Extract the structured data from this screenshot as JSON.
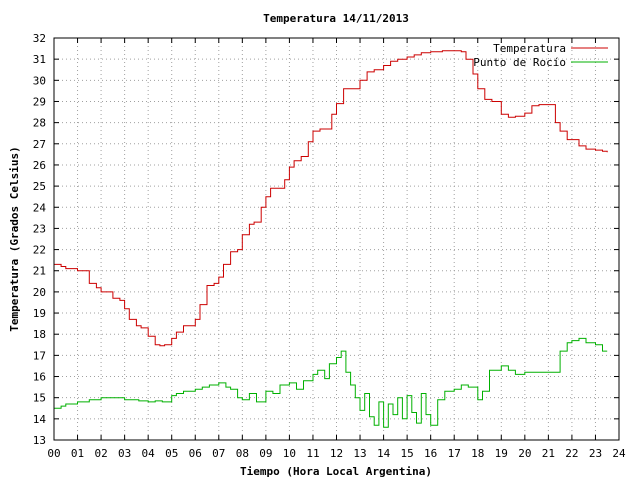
{
  "chart_data": {
    "type": "line",
    "title": "Temperatura 14/11/2013",
    "xlabel": "Tiempo (Hora Local Argentina)",
    "ylabel": "Temperatura (Grados Celsius)",
    "xlim": [
      0,
      24
    ],
    "ylim": [
      13,
      32
    ],
    "x_tick_labels": [
      "00",
      "01",
      "02",
      "03",
      "04",
      "05",
      "06",
      "07",
      "08",
      "09",
      "10",
      "11",
      "12",
      "13",
      "14",
      "15",
      "16",
      "17",
      "18",
      "19",
      "20",
      "21",
      "22",
      "23",
      "24"
    ],
    "y_ticks": [
      13,
      14,
      15,
      16,
      17,
      18,
      19,
      20,
      21,
      22,
      23,
      24,
      25,
      26,
      27,
      28,
      29,
      30,
      31,
      32
    ],
    "grid": true,
    "legend_position": "top-right",
    "series": [
      {
        "name": "Temperatura",
        "color": "#cc0000",
        "x": [
          0,
          0.3,
          0.5,
          1.0,
          1.5,
          1.8,
          2.0,
          2.5,
          2.8,
          3.0,
          3.2,
          3.5,
          3.7,
          4.0,
          4.3,
          4.5,
          4.7,
          5.0,
          5.2,
          5.5,
          5.7,
          6.0,
          6.2,
          6.5,
          6.8,
          7.0,
          7.2,
          7.5,
          7.8,
          8.0,
          8.3,
          8.5,
          8.8,
          9.0,
          9.2,
          9.5,
          9.8,
          10.0,
          10.2,
          10.5,
          10.8,
          11.0,
          11.3,
          11.5,
          11.8,
          12.0,
          12.3,
          12.7,
          13.0,
          13.3,
          13.6,
          14.0,
          14.3,
          14.6,
          15.0,
          15.3,
          15.6,
          16.0,
          16.5,
          17.0,
          17.3,
          17.5,
          17.8,
          18.0,
          18.3,
          18.6,
          19.0,
          19.3,
          19.6,
          20.0,
          20.3,
          20.6,
          21.0,
          21.3,
          21.5,
          21.8,
          22.0,
          22.3,
          22.6,
          23.0,
          23.3,
          23.5
        ],
        "values": [
          21.3,
          21.2,
          21.1,
          21.0,
          20.4,
          20.2,
          20.0,
          19.7,
          19.6,
          19.2,
          18.7,
          18.4,
          18.3,
          17.9,
          17.5,
          17.45,
          17.5,
          17.8,
          18.1,
          18.4,
          18.4,
          18.7,
          19.4,
          20.3,
          20.4,
          20.7,
          21.3,
          21.9,
          22.0,
          22.7,
          23.2,
          23.3,
          24.0,
          24.5,
          24.9,
          24.9,
          25.3,
          25.9,
          26.2,
          26.4,
          27.1,
          27.6,
          27.7,
          27.7,
          28.4,
          28.9,
          29.6,
          29.6,
          30.0,
          30.4,
          30.5,
          30.7,
          30.9,
          31.0,
          31.1,
          31.2,
          31.3,
          31.35,
          31.4,
          31.4,
          31.35,
          31.0,
          30.3,
          29.6,
          29.1,
          29.0,
          28.4,
          28.25,
          28.3,
          28.45,
          28.8,
          28.85,
          28.85,
          28.0,
          27.6,
          27.2,
          27.2,
          26.9,
          26.75,
          26.7,
          26.65,
          26.6
        ]
      },
      {
        "name": "Punto de Rocío",
        "color": "#00b000",
        "x": [
          0,
          0.3,
          0.5,
          0.8,
          1.0,
          1.5,
          2.0,
          2.5,
          3.0,
          3.3,
          3.6,
          4.0,
          4.3,
          4.6,
          5.0,
          5.2,
          5.5,
          5.8,
          6.0,
          6.3,
          6.6,
          7.0,
          7.3,
          7.5,
          7.8,
          8.0,
          8.3,
          8.6,
          9.0,
          9.3,
          9.6,
          10.0,
          10.3,
          10.6,
          11.0,
          11.2,
          11.5,
          11.7,
          12.0,
          12.2,
          12.4,
          12.6,
          12.8,
          13.0,
          13.2,
          13.4,
          13.6,
          13.8,
          14.0,
          14.2,
          14.4,
          14.6,
          14.8,
          15.0,
          15.2,
          15.4,
          15.6,
          15.8,
          16.0,
          16.3,
          16.6,
          17.0,
          17.3,
          17.6,
          18.0,
          18.2,
          18.5,
          18.8,
          19.0,
          19.3,
          19.6,
          20.0,
          20.4,
          20.8,
          21.2,
          21.5,
          21.8,
          22.0,
          22.3,
          22.6,
          23.0,
          23.3,
          23.5
        ],
        "values": [
          14.5,
          14.6,
          14.7,
          14.7,
          14.8,
          14.9,
          15.0,
          15.0,
          14.9,
          14.9,
          14.85,
          14.8,
          14.85,
          14.8,
          15.1,
          15.2,
          15.3,
          15.3,
          15.4,
          15.5,
          15.6,
          15.7,
          15.5,
          15.4,
          15.0,
          14.9,
          15.2,
          14.8,
          15.3,
          15.2,
          15.6,
          15.7,
          15.4,
          15.8,
          16.1,
          16.3,
          15.9,
          16.6,
          16.9,
          17.2,
          16.2,
          15.6,
          15.0,
          14.4,
          15.2,
          14.1,
          13.7,
          14.8,
          13.6,
          14.7,
          14.2,
          15.0,
          14.0,
          15.1,
          14.3,
          13.8,
          15.2,
          14.2,
          13.7,
          14.9,
          15.3,
          15.4,
          15.6,
          15.5,
          14.9,
          15.3,
          16.3,
          16.3,
          16.5,
          16.3,
          16.1,
          16.2,
          16.2,
          16.2,
          16.2,
          17.2,
          17.6,
          17.7,
          17.8,
          17.6,
          17.5,
          17.2,
          17.2
        ]
      }
    ]
  }
}
